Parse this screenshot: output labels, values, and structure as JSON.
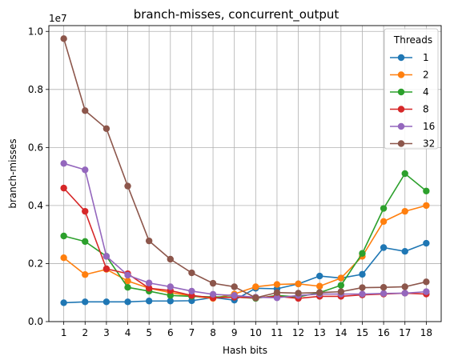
{
  "chart_data": {
    "type": "line",
    "title": "branch-misses, concurrent_output",
    "xlabel": "Hash bits",
    "ylabel": "branch-misses",
    "y_scale_label": "1e7",
    "x": [
      1,
      2,
      3,
      4,
      5,
      6,
      7,
      8,
      9,
      10,
      11,
      12,
      13,
      14,
      15,
      16,
      17,
      18
    ],
    "x_tick_labels": [
      "1",
      "2",
      "3",
      "4",
      "5",
      "6",
      "7",
      "8",
      "9",
      "10",
      "11",
      "12",
      "13",
      "14",
      "15",
      "16",
      "17",
      "18"
    ],
    "ylim": [
      0,
      1.02
    ],
    "y_ticks": [
      0.0,
      0.2,
      0.4,
      0.6,
      0.8,
      1.0
    ],
    "y_tick_labels": [
      "0.0",
      "0.2",
      "0.4",
      "0.6",
      "0.8",
      "1.0"
    ],
    "grid": true,
    "legend": {
      "title": "Threads",
      "placement": "top-right"
    },
    "series": [
      {
        "name": "1",
        "color": "#1f77b4",
        "values": [
          0.065,
          0.068,
          0.068,
          0.068,
          0.071,
          0.071,
          0.072,
          0.083,
          0.074,
          0.115,
          0.113,
          0.13,
          0.157,
          0.15,
          0.163,
          0.255,
          0.242,
          0.27
        ]
      },
      {
        "name": "2",
        "color": "#ff7f0e",
        "values": [
          0.22,
          0.162,
          0.18,
          0.14,
          0.115,
          0.1,
          0.088,
          0.08,
          0.095,
          0.12,
          0.128,
          0.13,
          0.122,
          0.15,
          0.225,
          0.345,
          0.38,
          0.4
        ]
      },
      {
        "name": "4",
        "color": "#2ca02c",
        "values": [
          0.295,
          0.276,
          0.225,
          0.118,
          0.105,
          0.09,
          0.087,
          0.085,
          0.085,
          0.08,
          0.09,
          0.085,
          0.1,
          0.125,
          0.235,
          0.39,
          0.51,
          0.45
        ]
      },
      {
        "name": "8",
        "color": "#d62728",
        "values": [
          0.46,
          0.38,
          0.182,
          0.165,
          0.115,
          0.107,
          0.09,
          0.082,
          0.084,
          0.082,
          0.087,
          0.08,
          0.087,
          0.087,
          0.092,
          0.095,
          0.098,
          0.095
        ]
      },
      {
        "name": "16",
        "color": "#9467bd",
        "values": [
          0.545,
          0.523,
          0.225,
          0.16,
          0.133,
          0.12,
          0.105,
          0.094,
          0.09,
          0.084,
          0.082,
          0.09,
          0.095,
          0.095,
          0.095,
          0.097,
          0.098,
          0.103
        ]
      },
      {
        "name": "32",
        "color": "#8c564b",
        "values": [
          0.975,
          0.727,
          0.665,
          0.467,
          0.278,
          0.215,
          0.168,
          0.132,
          0.12,
          0.082,
          0.1,
          0.098,
          0.1,
          0.103,
          0.117,
          0.118,
          0.12,
          0.137
        ]
      }
    ]
  }
}
